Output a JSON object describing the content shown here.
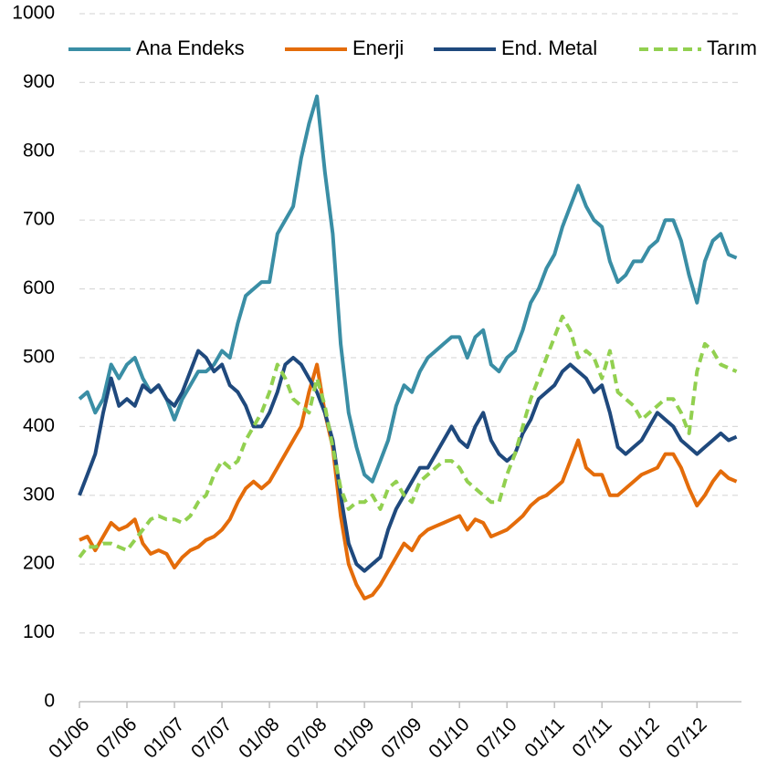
{
  "chart_data": {
    "type": "line",
    "categories": [
      "01/06",
      null,
      null,
      null,
      null,
      null,
      "07/06",
      null,
      null,
      null,
      null,
      null,
      "01/07",
      null,
      null,
      null,
      null,
      null,
      "07/07",
      null,
      null,
      null,
      null,
      null,
      "01/08",
      null,
      null,
      null,
      null,
      null,
      "07/08",
      null,
      null,
      null,
      null,
      null,
      "01/09",
      null,
      null,
      null,
      null,
      null,
      "07/09",
      null,
      null,
      null,
      null,
      null,
      "01/10",
      null,
      null,
      null,
      null,
      null,
      "07/10",
      null,
      null,
      null,
      null,
      null,
      "01/11",
      null,
      null,
      null,
      null,
      null,
      "07/11",
      null,
      null,
      null,
      null,
      null,
      "01/12",
      null,
      null,
      null,
      null,
      null,
      "07/12",
      null,
      null,
      null,
      null,
      null
    ],
    "series": [
      {
        "name": "Ana Endeks",
        "color": "#3a8ea5",
        "line_style": "solid",
        "values": [
          440,
          450,
          420,
          440,
          490,
          470,
          490,
          500,
          470,
          450,
          460,
          440,
          410,
          440,
          460,
          480,
          480,
          490,
          510,
          500,
          550,
          590,
          600,
          610,
          610,
          680,
          700,
          720,
          790,
          840,
          880,
          770,
          680,
          520,
          420,
          370,
          330,
          320,
          350,
          380,
          430,
          460,
          450,
          480,
          500,
          510,
          520,
          530,
          530,
          500,
          530,
          540,
          490,
          480,
          500,
          510,
          540,
          580,
          600,
          630,
          650,
          690,
          720,
          750,
          720,
          700,
          690,
          640,
          610,
          620,
          640,
          640,
          660,
          670,
          700,
          700,
          670,
          620,
          580,
          640,
          670,
          680,
          650,
          645
        ]
      },
      {
        "name": "Enerji",
        "color": "#e46c0a",
        "line_style": "solid",
        "values": [
          235,
          240,
          220,
          240,
          260,
          250,
          255,
          265,
          230,
          215,
          220,
          215,
          195,
          210,
          220,
          225,
          235,
          240,
          250,
          265,
          290,
          310,
          320,
          310,
          320,
          340,
          360,
          380,
          400,
          450,
          490,
          420,
          370,
          270,
          200,
          170,
          150,
          155,
          170,
          190,
          210,
          230,
          220,
          240,
          250,
          255,
          260,
          265,
          270,
          250,
          265,
          260,
          240,
          245,
          250,
          260,
          270,
          285,
          295,
          300,
          310,
          320,
          350,
          380,
          340,
          330,
          330,
          300,
          300,
          310,
          320,
          330,
          335,
          340,
          360,
          360,
          340,
          310,
          285,
          300,
          320,
          335,
          325,
          320
        ]
      },
      {
        "name": "End. Metal",
        "color": "#1f497d",
        "line_style": "solid",
        "values": [
          300,
          330,
          360,
          420,
          470,
          430,
          440,
          430,
          460,
          450,
          460,
          440,
          430,
          450,
          480,
          510,
          500,
          480,
          490,
          460,
          450,
          430,
          400,
          400,
          420,
          450,
          490,
          500,
          490,
          470,
          450,
          420,
          380,
          300,
          230,
          200,
          190,
          200,
          210,
          250,
          280,
          300,
          320,
          340,
          340,
          360,
          380,
          400,
          380,
          370,
          400,
          420,
          380,
          360,
          350,
          360,
          390,
          410,
          440,
          450,
          460,
          480,
          490,
          480,
          470,
          450,
          460,
          420,
          370,
          360,
          370,
          380,
          400,
          420,
          410,
          400,
          380,
          370,
          360,
          370,
          380,
          390,
          380,
          385
        ]
      },
      {
        "name": "Tarım",
        "color": "#92d050",
        "line_style": "dashed",
        "values": [
          210,
          225,
          225,
          230,
          230,
          225,
          220,
          235,
          250,
          265,
          270,
          265,
          265,
          260,
          270,
          290,
          300,
          330,
          350,
          340,
          350,
          380,
          400,
          420,
          450,
          490,
          470,
          440,
          430,
          420,
          470,
          430,
          370,
          310,
          280,
          290,
          290,
          300,
          280,
          310,
          320,
          300,
          290,
          320,
          330,
          340,
          350,
          350,
          340,
          320,
          310,
          300,
          290,
          290,
          330,
          360,
          400,
          440,
          470,
          500,
          530,
          560,
          540,
          500,
          510,
          500,
          470,
          510,
          450,
          440,
          430,
          410,
          420,
          430,
          440,
          440,
          420,
          390,
          480,
          520,
          510,
          490,
          485,
          480
        ]
      }
    ],
    "ylim": [
      0,
      1000
    ],
    "yticks": [
      0,
      100,
      200,
      300,
      400,
      500,
      600,
      700,
      800,
      900,
      1000
    ],
    "grid": true,
    "legend": "top"
  }
}
